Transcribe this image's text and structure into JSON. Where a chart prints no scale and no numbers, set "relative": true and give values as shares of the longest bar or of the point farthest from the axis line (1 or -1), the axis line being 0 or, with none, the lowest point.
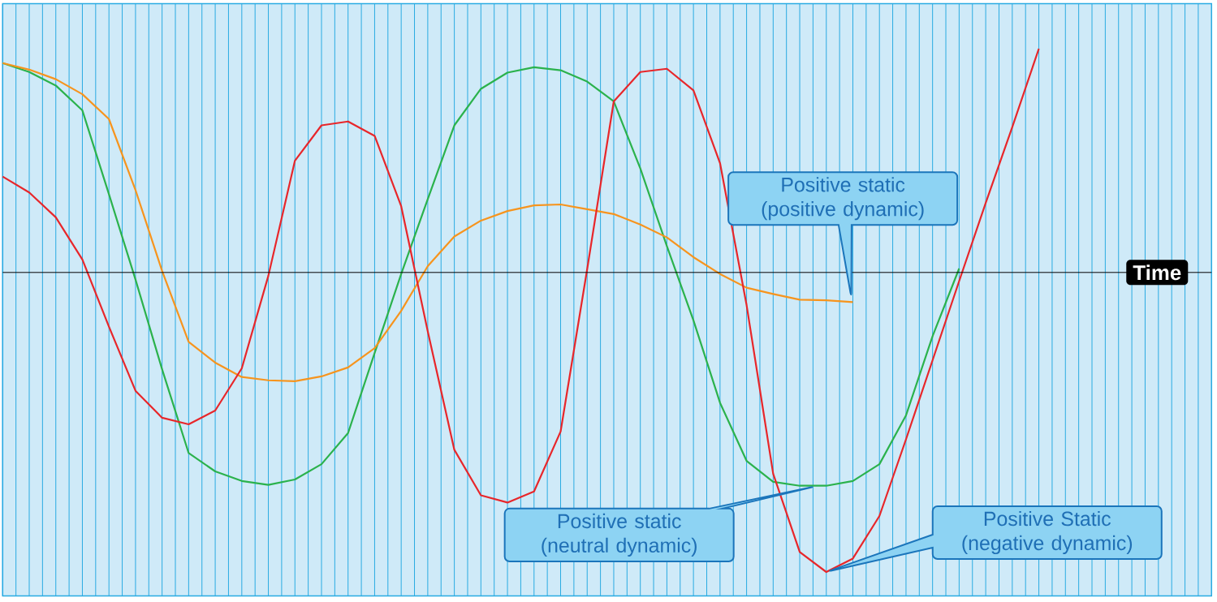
{
  "chart_data": {
    "type": "line",
    "relative": true,
    "xlabel": "Time",
    "grid": "x",
    "categories": [
      null,
      null,
      null,
      null,
      null,
      null,
      null,
      null,
      null,
      null,
      null,
      null,
      null,
      null,
      null,
      null,
      null,
      null,
      null,
      null,
      null,
      null,
      null,
      null,
      null,
      null,
      null,
      null,
      null,
      null,
      null,
      null,
      null,
      null,
      null,
      null,
      null,
      null,
      null,
      null,
      null,
      null,
      null,
      null,
      null,
      null
    ],
    "series": [
      {
        "color": "#2bb24c",
        "values": [
          0.699,
          0.669,
          0.624,
          0.541,
          0.261,
          -0.024,
          -0.323,
          -0.603,
          -0.664,
          -0.696,
          -0.709,
          -0.691,
          -0.64,
          -0.536,
          -0.269,
          -0.005,
          0.245,
          0.491,
          0.613,
          0.667,
          0.685,
          0.675,
          0.637,
          0.571,
          0.347,
          0.088,
          -0.16,
          -0.435,
          -0.629,
          -0.699,
          -0.712,
          -0.712,
          -0.696,
          -0.64,
          -0.477,
          -0.213,
          0.013,
          null,
          null,
          null,
          null,
          null,
          null,
          null,
          null,
          null
        ]
      },
      {
        "color": "#f7941d",
        "values": [
          0.699,
          0.677,
          0.645,
          0.595,
          0.512,
          0.275,
          0.005,
          -0.232,
          -0.301,
          -0.349,
          -0.36,
          -0.363,
          -0.347,
          -0.317,
          -0.253,
          -0.128,
          0.021,
          0.12,
          0.173,
          0.205,
          0.224,
          0.227,
          0.211,
          0.195,
          0.16,
          0.117,
          0.051,
          -0.005,
          -0.051,
          -0.072,
          -0.091,
          -0.093,
          -0.099,
          null,
          null,
          null,
          null,
          null,
          null,
          null,
          null,
          null,
          null,
          null,
          null,
          null
        ]
      },
      {
        "color": "#e8262a",
        "values": [
          0.32,
          0.267,
          0.184,
          0.043,
          -0.181,
          -0.395,
          -0.485,
          -0.507,
          -0.461,
          -0.32,
          -0.011,
          0.373,
          0.491,
          0.504,
          0.456,
          0.221,
          -0.197,
          -0.592,
          -0.744,
          -0.768,
          -0.731,
          -0.531,
          0.011,
          0.571,
          0.669,
          0.68,
          0.608,
          0.365,
          -0.109,
          -0.672,
          -0.933,
          -1,
          -0.955,
          -0.813,
          -0.557,
          -0.293,
          -0.029,
          0.232,
          0.485,
          0.747,
          null,
          null,
          null,
          null,
          null,
          null
        ]
      }
    ],
    "annotations": [
      "Positive static (positive dynamic)",
      "Positive static (neutral dynamic)",
      "Positive Static (negative dynamic)"
    ]
  }
}
